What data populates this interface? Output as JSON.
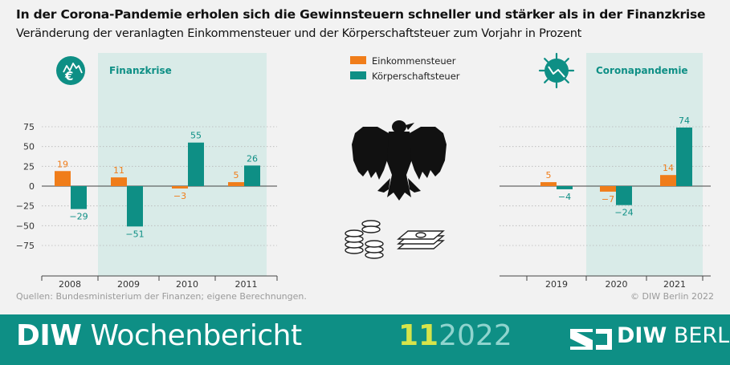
{
  "header": {
    "title": "In der Corona-Pandemie erholen sich die Gewinnsteuern schneller und stärker als in der Finanzkrise",
    "subtitle": "Veränderung der veranlagten Einkommensteuer und der Körperschaftsteuer zum Vorjahr in Prozent"
  },
  "colors": {
    "einkommensteuer": "#f07d1a",
    "koerperschaftsteuer": "#0e8f85",
    "highlight": "#d9ebe8",
    "footer": "#0e8f85"
  },
  "icons": {
    "left_panel": "euro-crisis-icon",
    "right_panel": "coronavirus-icon",
    "center_top": "federal-eagle-icon",
    "center_bottom": "coins-and-banknotes-icon"
  },
  "chart_data": [
    {
      "type": "bar",
      "categories": [
        "2008",
        "2009",
        "2010",
        "2011"
      ],
      "series": [
        {
          "name": "Einkommensteuer",
          "values": [
            19,
            11,
            -3,
            5
          ]
        },
        {
          "name": "Körperschaftsteuer",
          "values": [
            -29,
            -51,
            55,
            26
          ]
        }
      ],
      "data_labels": [
        [
          "19",
          "11",
          "−3",
          "5"
        ],
        [
          "−29",
          "−51",
          "55",
          "26"
        ]
      ],
      "yticks": [
        "75",
        "50",
        "25",
        "0",
        "−25",
        "−50",
        "−75"
      ],
      "ylim": [
        -75,
        75
      ],
      "highlight": {
        "label": "Finanzkrise",
        "from": "2009",
        "to": "2011"
      },
      "legend": "top-center"
    },
    {
      "type": "bar",
      "categories": [
        "2019",
        "2020",
        "2021"
      ],
      "series": [
        {
          "name": "Einkommensteuer",
          "values": [
            5,
            -7,
            14
          ]
        },
        {
          "name": "Körperschaftsteuer",
          "values": [
            -4,
            -24,
            74
          ]
        }
      ],
      "data_labels": [
        [
          "5",
          "−7",
          "14"
        ],
        [
          "−4",
          "−24",
          "74"
        ]
      ],
      "ylim": [
        -75,
        75
      ],
      "highlight": {
        "label": "Coronapandemie",
        "from": "2020",
        "to": "2021"
      }
    }
  ],
  "footer": {
    "source": "Quellen: Bundesministerium der Finanzen; eigene Berechnungen.",
    "copyright": "© DIW Berlin 2022",
    "brand_bold": "DIW",
    "brand_rest": " Wochenbericht",
    "issue_number": "11",
    "issue_year": "2022",
    "logo_bold": "DIW",
    "logo_rest": " BERLIN"
  }
}
